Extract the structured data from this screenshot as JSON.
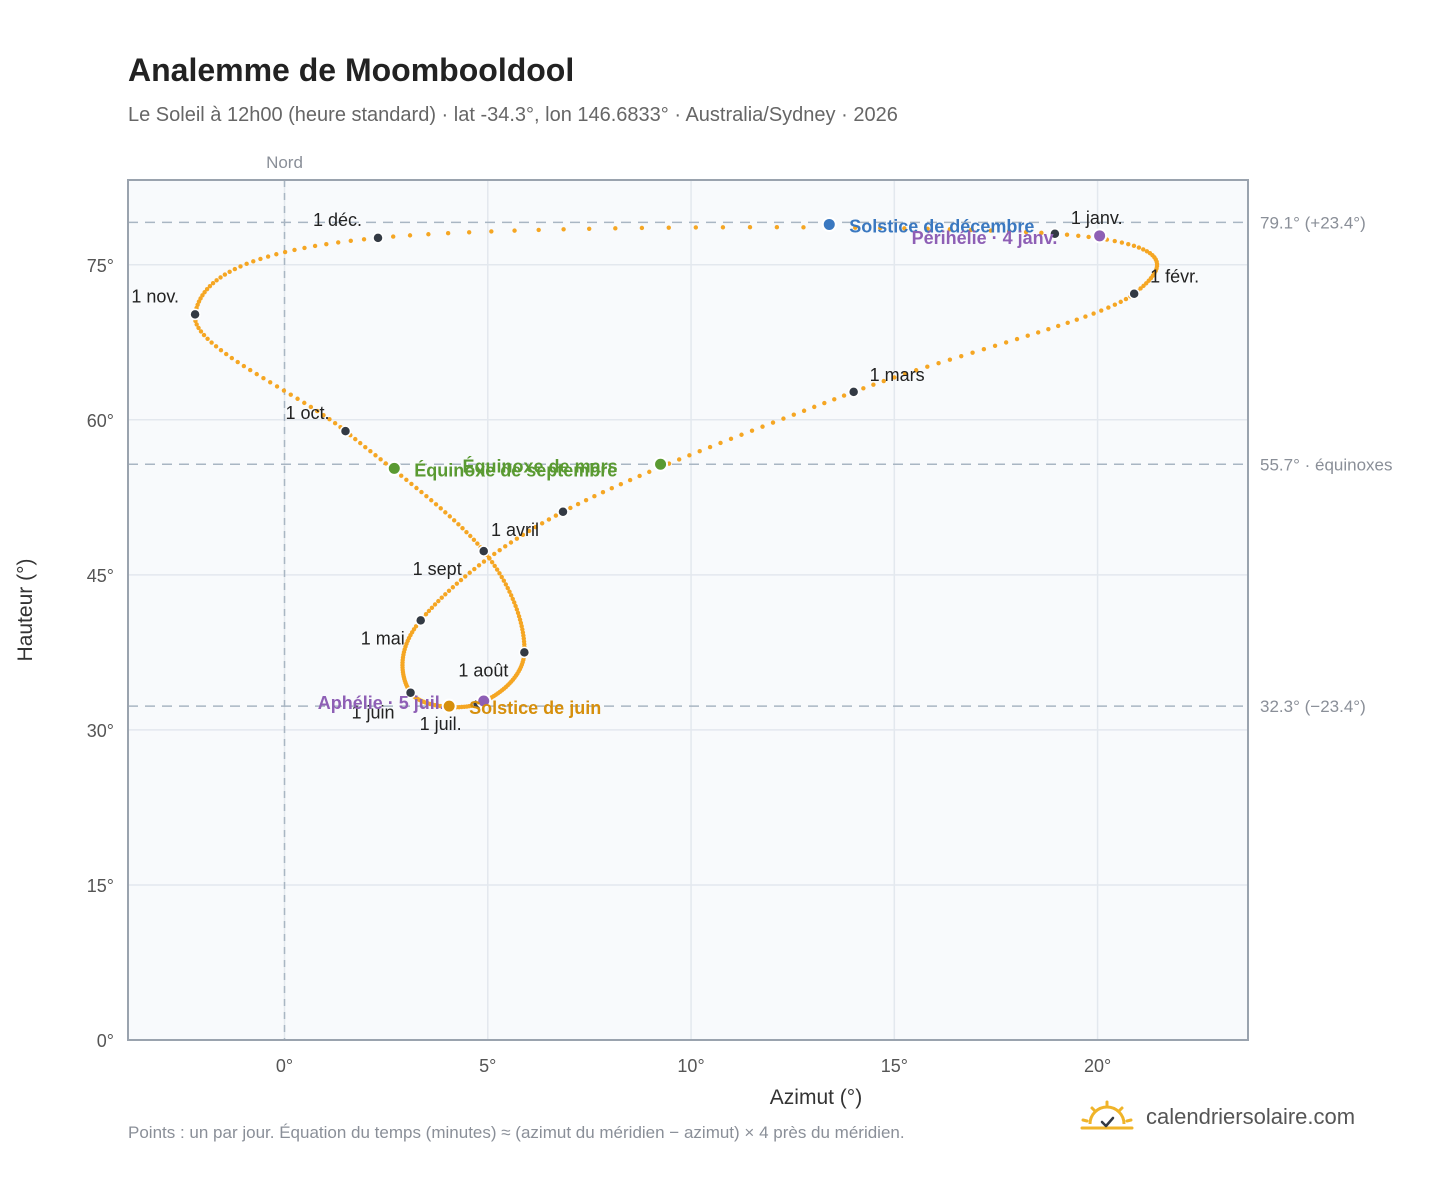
{
  "title": "Analemme de Moombooldool",
  "subtitle": "Le Soleil à 12h00 (heure standard) · lat -34.3°, lon 146.6833° · Australia/Sydney · 2026",
  "footnote": "Points : un par jour. Équation du temps (minutes) ≈ (azimut du méridien − azimut) × 4 près du méridien.",
  "brand": {
    "name": "calendriersolaire.com",
    "icon": "sun-icon",
    "icon_color": "#f0b429"
  },
  "colors": {
    "curve": "#f5a623",
    "month_dot": "#333a44",
    "december_solstice": "#3a78c0",
    "perihelion": "#8e5fb5",
    "aphelion": "#8e5fb5",
    "equinox": "#5a9a32",
    "june_solstice": "#d68f0c",
    "ref_line": "#a9b6c3",
    "plot_bg": "#f8fafc",
    "frame": "#9aa3ae"
  },
  "chart_data": {
    "type": "scatter",
    "xlabel": "Azimut (°)",
    "ylabel": "Hauteur (°)",
    "xlim": [
      -3.85,
      23.7
    ],
    "ylim": [
      0,
      83.2
    ],
    "x_ticks": [
      "0°",
      "5°",
      "10°",
      "15°",
      "20°"
    ],
    "x_tick_values": [
      0,
      5,
      10,
      15,
      20
    ],
    "y_ticks": [
      "0°",
      "15°",
      "30°",
      "45°",
      "60°",
      "75°"
    ],
    "y_tick_values": [
      0,
      15,
      30,
      45,
      60,
      75
    ],
    "grid": true,
    "meridian": {
      "azimuth": 0,
      "label": "Nord"
    },
    "reference_lines": [
      {
        "altitude": 79.1,
        "label": "79.1° (+23.4°)"
      },
      {
        "altitude": 55.7,
        "label": "55.7° · équinoxes"
      },
      {
        "altitude": 32.3,
        "label": "32.3° (−23.4°)"
      }
    ],
    "month_points": [
      {
        "label": "1 janv.",
        "azimuth": 18.95,
        "altitude": 78.0,
        "anchor": "start",
        "dx": 16,
        "dy": -10
      },
      {
        "label": "1 févr.",
        "azimuth": 20.9,
        "altitude": 72.2,
        "anchor": "start",
        "dx": 16,
        "dy": -11
      },
      {
        "label": "1 mars",
        "azimuth": 14.0,
        "altitude": 62.7,
        "anchor": "start",
        "dx": 16,
        "dy": -11
      },
      {
        "label": "1 avril",
        "azimuth": 6.85,
        "altitude": 51.1,
        "anchor": "start",
        "dx": -72,
        "dy": 24
      },
      {
        "label": "1 mai",
        "azimuth": 3.35,
        "altitude": 40.6,
        "anchor": "end",
        "dx": -16,
        "dy": 24
      },
      {
        "label": "1 juin",
        "azimuth": 3.1,
        "altitude": 33.6,
        "anchor": "end",
        "dx": -16,
        "dy": 26
      },
      {
        "label": "1 juil.",
        "azimuth": 4.75,
        "altitude": 32.5,
        "anchor": "end",
        "dx": -16,
        "dy": 26
      },
      {
        "label": "1 août",
        "azimuth": 5.9,
        "altitude": 37.5,
        "anchor": "end",
        "dx": -16,
        "dy": 24
      },
      {
        "label": "1 sept",
        "azimuth": 4.9,
        "altitude": 47.3,
        "anchor": "end",
        "dx": -22,
        "dy": 24
      },
      {
        "label": "1 oct.",
        "azimuth": 1.5,
        "altitude": 58.9,
        "anchor": "end",
        "dx": -16,
        "dy": -12
      },
      {
        "label": "1 nov.",
        "azimuth": -2.2,
        "altitude": 70.2,
        "anchor": "end",
        "dx": -16,
        "dy": -12
      },
      {
        "label": "1 déc.",
        "azimuth": 2.3,
        "altitude": 77.6,
        "anchor": "end",
        "dx": -16,
        "dy": -12
      }
    ],
    "events": [
      {
        "label": "Solstice de décembre",
        "azimuth": 13.4,
        "altitude": 78.9,
        "color": "#3a78c0",
        "dx": 20,
        "dy": 8
      },
      {
        "label": "Périhélie · 4 janv.",
        "azimuth": 20.05,
        "altitude": 77.8,
        "color": "#8e5fb5",
        "dx": -188,
        "dy": 8
      },
      {
        "label": "Équinoxe de mars",
        "azimuth": 9.25,
        "altitude": 55.7,
        "color": "#5a9a32",
        "dx": -198,
        "dy": 8
      },
      {
        "label": "Équinoxe de septembre",
        "azimuth": 2.7,
        "altitude": 55.3,
        "color": "#5a9a32",
        "dx": 20,
        "dy": 8
      },
      {
        "label": "Aphélie · 5 juil.",
        "azimuth": 4.9,
        "altitude": 32.8,
        "color": "#8e5fb5",
        "dx": -166,
        "dy": 8
      },
      {
        "label": "Solstice de juin",
        "azimuth": 4.05,
        "altitude": 32.3,
        "color": "#d68f0c",
        "dx": 20,
        "dy": 8
      }
    ],
    "daily_points": {
      "count": 365,
      "description": "Points : un par jour"
    }
  }
}
